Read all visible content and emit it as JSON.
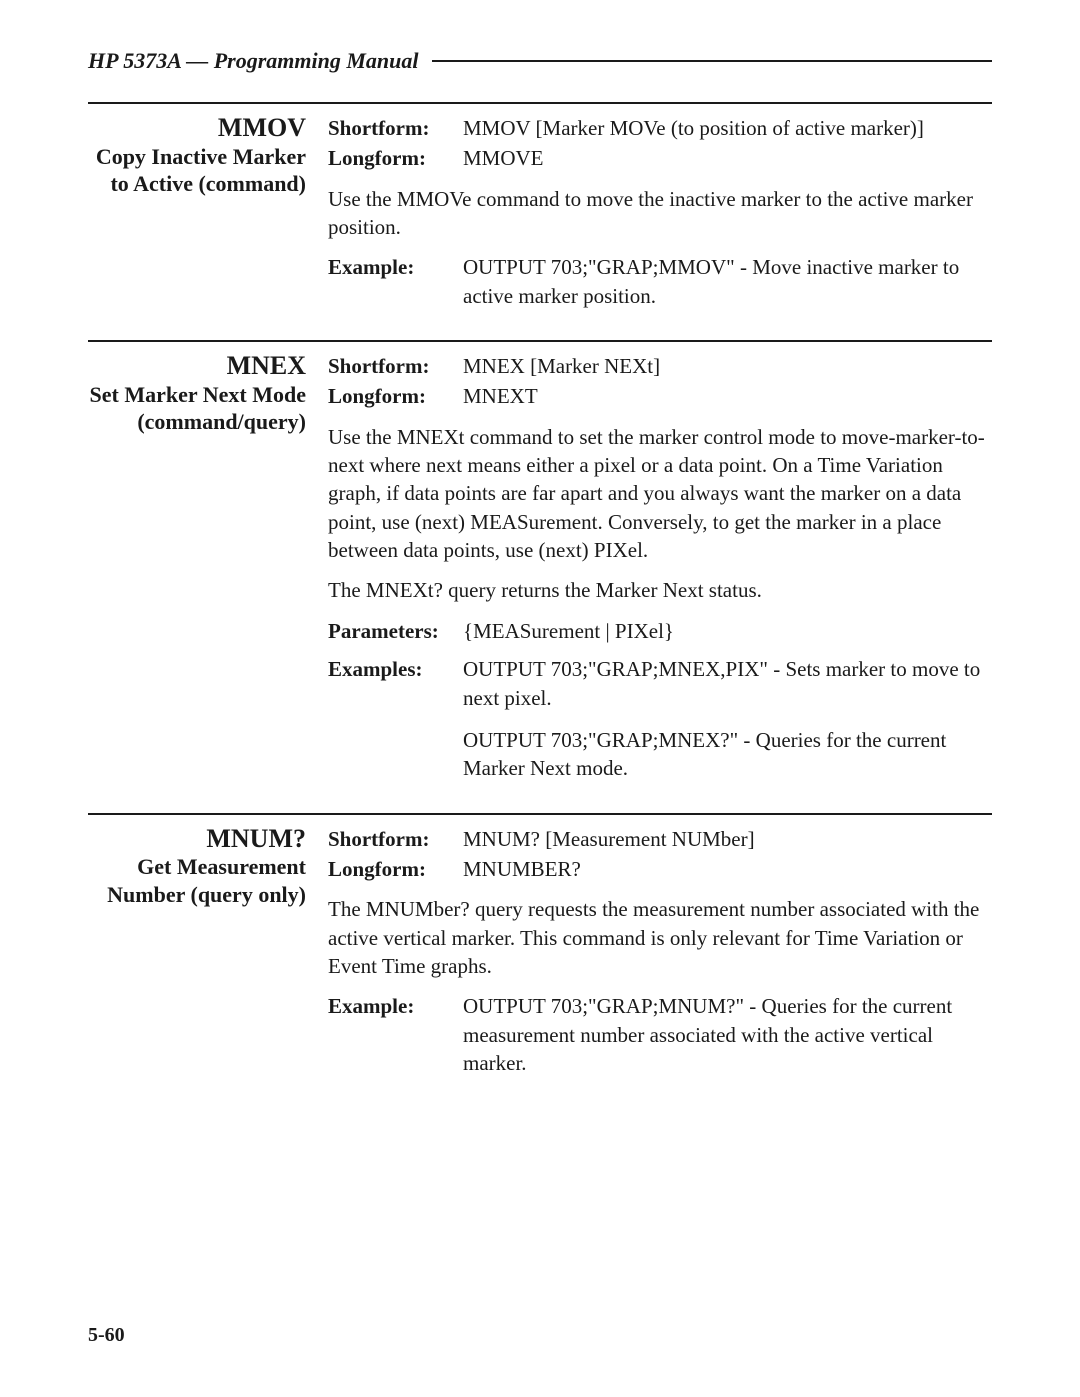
{
  "header": "HP 5373A — Programming Manual",
  "pageNumber": "5-60",
  "entries": [
    {
      "command": "MMOV",
      "description": "Copy Inactive Marker to Active (command)",
      "shortform": "MMOV [Marker MOVe (to position of active marker)]",
      "longform": "MMOVE",
      "body": [
        "Use the MMOVe command to move the inactive marker to the active marker position."
      ],
      "examplesLabel": "Example:",
      "examples": [
        "OUTPUT 703;\"GRAP;MMOV\" - Move inactive marker to active marker position."
      ]
    },
    {
      "command": "MNEX",
      "description": "Set Marker Next Mode (command/query)",
      "shortform": "MNEX [Marker NEXt]",
      "longform": "MNEXT",
      "body": [
        "Use the MNEXt command to set the marker control mode to move-marker-to-next where next means either a pixel or a data point. On a Time Variation graph, if data points are far apart and you always want the marker on a data point, use (next) MEASurement. Conversely, to get the marker in a place between data points, use (next) PIXel.",
        "The MNEXt? query returns the Marker Next status."
      ],
      "parameters": "{MEASurement | PIXel}",
      "examplesLabel": "Examples:",
      "examples": [
        "OUTPUT 703;\"GRAP;MNEX,PIX\" - Sets marker to move to next pixel.",
        "OUTPUT 703;\"GRAP;MNEX?\" - Queries for the current Marker Next mode."
      ]
    },
    {
      "command": "MNUM?",
      "description": "Get Measurement Number (query only)",
      "shortform": "MNUM? [Measurement NUMber]",
      "longform": "MNUMBER?",
      "body": [
        "The MNUMber? query requests the measurement number associated with the active vertical marker. This command is only relevant for Time Variation or Event Time graphs."
      ],
      "examplesLabel": "Example:",
      "examples": [
        "OUTPUT 703;\"GRAP;MNUM?\" - Queries for the current measurement number associated with the active vertical marker."
      ]
    }
  ]
}
